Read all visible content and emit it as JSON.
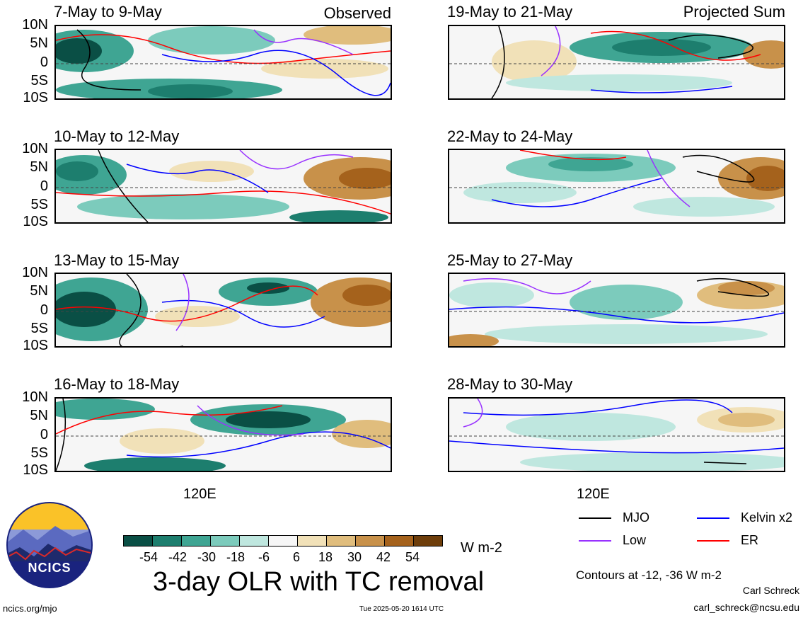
{
  "labels": {
    "observed": "Observed",
    "projected": "Projected Sum"
  },
  "lat_labels": [
    "10N",
    "5N",
    "0",
    "5S",
    "10S"
  ],
  "lon_label": "120E",
  "panels": [
    {
      "title": "7-May to 9-May"
    },
    {
      "title": "19-May to 21-May"
    },
    {
      "title": "10-May to 12-May"
    },
    {
      "title": "22-May to 24-May"
    },
    {
      "title": "13-May to 15-May"
    },
    {
      "title": "25-May to 27-May"
    },
    {
      "title": "16-May to 18-May"
    },
    {
      "title": "28-May to 30-May"
    }
  ],
  "colorbar": {
    "ticks": [
      "-54",
      "-42",
      "-30",
      "-18",
      "-6",
      "6",
      "18",
      "30",
      "42",
      "54"
    ],
    "colors": [
      "#0a4f45",
      "#1d7e6e",
      "#3fa593",
      "#7ccbbc",
      "#bfe7df",
      "#f6f6f6",
      "#f1e1b8",
      "#e0bd7d",
      "#c8914a",
      "#a5621c",
      "#6e3e0b"
    ],
    "units": "W m-2"
  },
  "legend": {
    "items": [
      {
        "label": "MJO",
        "color": "#000000"
      },
      {
        "label": "Kelvin x2",
        "color": "#0000ff"
      },
      {
        "label": "Low",
        "color": "#9932ff"
      },
      {
        "label": "ER",
        "color": "#ff0000"
      }
    ],
    "contours_note": "Contours at -12, -36 W m-2"
  },
  "main_title": "3-day OLR with TC removal",
  "logo_text": "NCICS",
  "footer": {
    "url": "ncics.org/mjo",
    "timestamp": "Tue 2025-05-20 1614 UTC",
    "author": "Carl Schreck",
    "email": "carl_schreck@ncsu.edu"
  }
}
